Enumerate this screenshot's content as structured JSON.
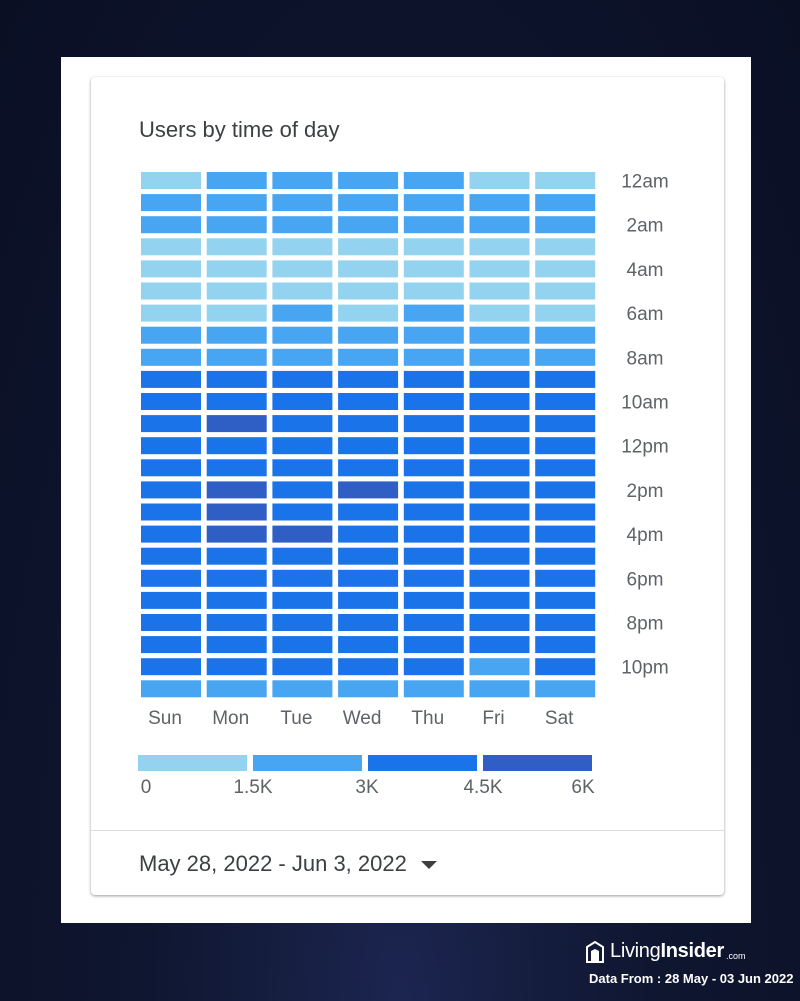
{
  "chart_data": {
    "type": "heatmap",
    "title": "Users by time of day",
    "days": [
      "Sun",
      "Mon",
      "Tue",
      "Wed",
      "Thu",
      "Fri",
      "Sat"
    ],
    "hour_labels": [
      "12am",
      "2am",
      "4am",
      "6am",
      "8am",
      "10am",
      "12pm",
      "2pm",
      "4pm",
      "6pm",
      "8pm",
      "10pm"
    ],
    "hours": [
      "12am",
      "1am",
      "2am",
      "3am",
      "4am",
      "5am",
      "6am",
      "7am",
      "8am",
      "9am",
      "10am",
      "11am",
      "12pm",
      "1pm",
      "2pm",
      "3pm",
      "4pm",
      "5pm",
      "6pm",
      "7pm",
      "8pm",
      "9pm",
      "10pm",
      "11pm"
    ],
    "color_scale": {
      "ticks": [
        0,
        1500,
        3000,
        4500,
        6000
      ],
      "tick_labels": [
        "0",
        "1.5K",
        "3K",
        "4.5K",
        "6K"
      ],
      "colors": [
        "#93d3ef",
        "#47a5f2",
        "#1a73e8",
        "#2f5fc4"
      ]
    },
    "values_by_hour": [
      [
        1200,
        2200,
        2200,
        2200,
        2200,
        1200,
        1200
      ],
      [
        2200,
        2200,
        2200,
        2200,
        2200,
        2200,
        2200
      ],
      [
        2200,
        2200,
        2200,
        2200,
        2200,
        2200,
        2200
      ],
      [
        1200,
        1200,
        1200,
        1200,
        1200,
        1200,
        1200
      ],
      [
        1200,
        1200,
        1200,
        1200,
        1200,
        1200,
        1200
      ],
      [
        1200,
        1200,
        1200,
        1200,
        1200,
        1200,
        1200
      ],
      [
        1200,
        1200,
        2200,
        1200,
        2200,
        1200,
        1200
      ],
      [
        2200,
        2200,
        2200,
        2200,
        2200,
        2200,
        2200
      ],
      [
        2200,
        2200,
        2200,
        2200,
        2200,
        2200,
        2200
      ],
      [
        3700,
        3700,
        3700,
        3700,
        3700,
        3700,
        3700
      ],
      [
        3700,
        3700,
        3700,
        3700,
        3700,
        3700,
        3700
      ],
      [
        3700,
        5100,
        3700,
        3700,
        3700,
        3700,
        3700
      ],
      [
        3700,
        3700,
        3700,
        3700,
        3700,
        3700,
        3700
      ],
      [
        3700,
        3700,
        3700,
        3700,
        3700,
        3700,
        3700
      ],
      [
        3700,
        5100,
        3700,
        5100,
        3700,
        3700,
        3700
      ],
      [
        3700,
        5100,
        3700,
        3700,
        3700,
        3700,
        3700
      ],
      [
        3700,
        5100,
        5100,
        3700,
        3700,
        3700,
        3700
      ],
      [
        3700,
        3700,
        3700,
        3700,
        3700,
        3700,
        3700
      ],
      [
        3700,
        3700,
        3700,
        3700,
        3700,
        3700,
        3700
      ],
      [
        3700,
        3700,
        3700,
        3700,
        3700,
        3700,
        3700
      ],
      [
        3700,
        3700,
        3700,
        3700,
        3700,
        3700,
        3700
      ],
      [
        3700,
        3700,
        3700,
        3700,
        3700,
        3700,
        3700
      ],
      [
        3700,
        3700,
        3700,
        3700,
        3700,
        2200,
        3700
      ],
      [
        2200,
        2200,
        2200,
        2200,
        2200,
        2200,
        2200
      ]
    ]
  },
  "date_range": "May 28, 2022 - Jun 3, 2022",
  "brand": {
    "name_light": "Living",
    "name_bold": "Insider",
    "suffix": ".com",
    "colors": {
      "text": "#ffffff"
    }
  },
  "source_note": "Data From : 28 May - 03 Jun 2022"
}
